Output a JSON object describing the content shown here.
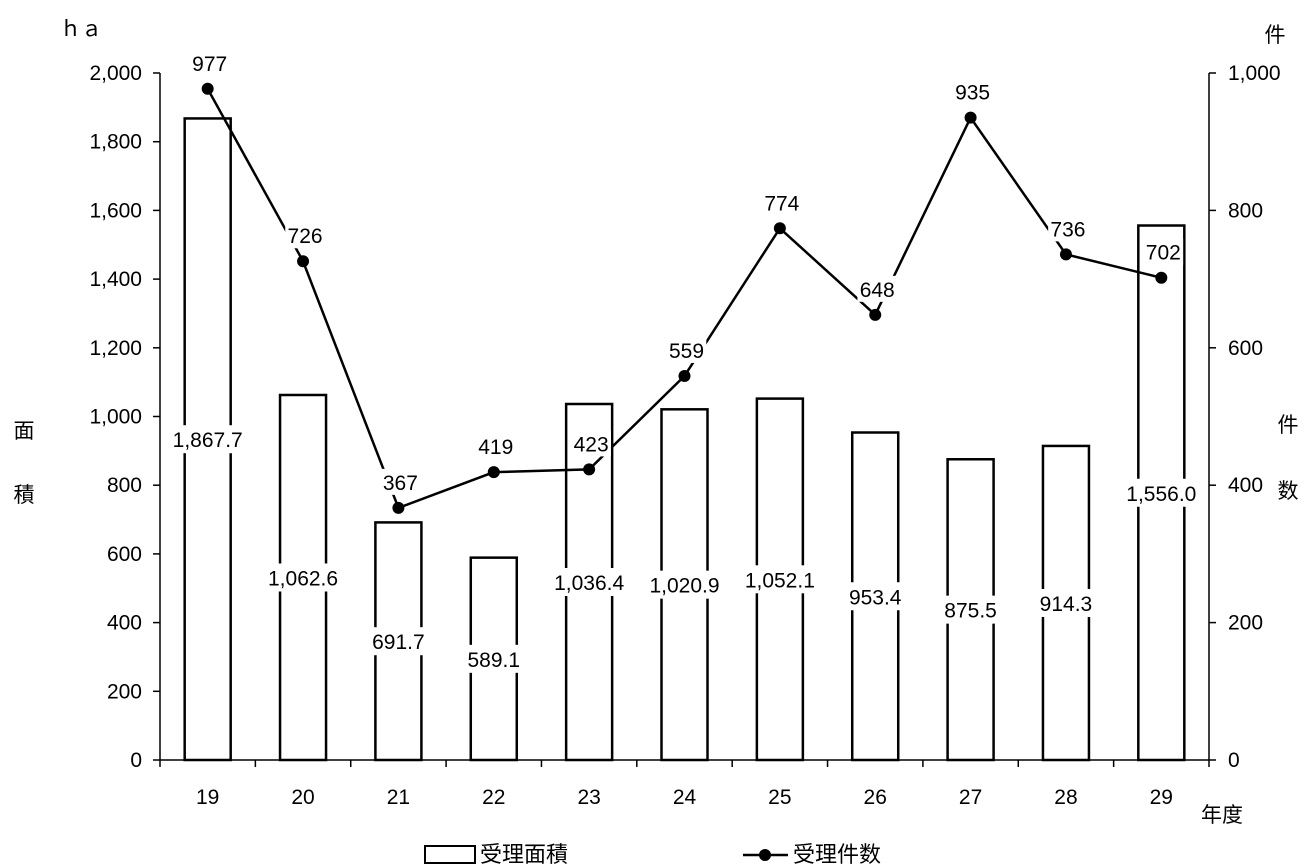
{
  "chart_data": {
    "type": "bar",
    "categories": [
      "19",
      "20",
      "21",
      "22",
      "23",
      "24",
      "25",
      "26",
      "27",
      "28",
      "29"
    ],
    "series": [
      {
        "name": "受理面積",
        "type": "bar",
        "axis": "left",
        "values": [
          1867.7,
          1062.6,
          691.7,
          589.1,
          1036.4,
          1020.9,
          1052.1,
          953.4,
          875.5,
          914.3,
          1556.0
        ],
        "labels": [
          "1,867.7",
          "1,062.6",
          "691.7",
          "589.1",
          "1,036.4",
          "1,020.9",
          "1,052.1",
          "953.4",
          "875.5",
          "914.3",
          "1,556.0"
        ]
      },
      {
        "name": "受理件数",
        "type": "line",
        "axis": "right",
        "values": [
          977,
          726,
          367,
          419,
          423,
          559,
          774,
          648,
          935,
          736,
          702
        ],
        "labels": [
          "977",
          "726",
          "367",
          "419",
          "423",
          "559",
          "774",
          "648",
          "935",
          "736",
          "702"
        ]
      }
    ],
    "y_left": {
      "unit": "ｈａ",
      "title_chars": [
        "面",
        "積"
      ],
      "ylim": [
        0,
        2000
      ],
      "ticks": [
        "0",
        "200",
        "400",
        "600",
        "800",
        "1,000",
        "1,200",
        "1,400",
        "1,600",
        "1,800",
        "2,000"
      ]
    },
    "y_right": {
      "unit": "件",
      "title_chars": [
        "件",
        "数"
      ],
      "ylim": [
        0,
        1000
      ],
      "ticks": [
        "0",
        "200",
        "400",
        "600",
        "800",
        "1,000"
      ]
    },
    "xlabel": "年度",
    "legend_position": "bottom",
    "grid": false
  }
}
